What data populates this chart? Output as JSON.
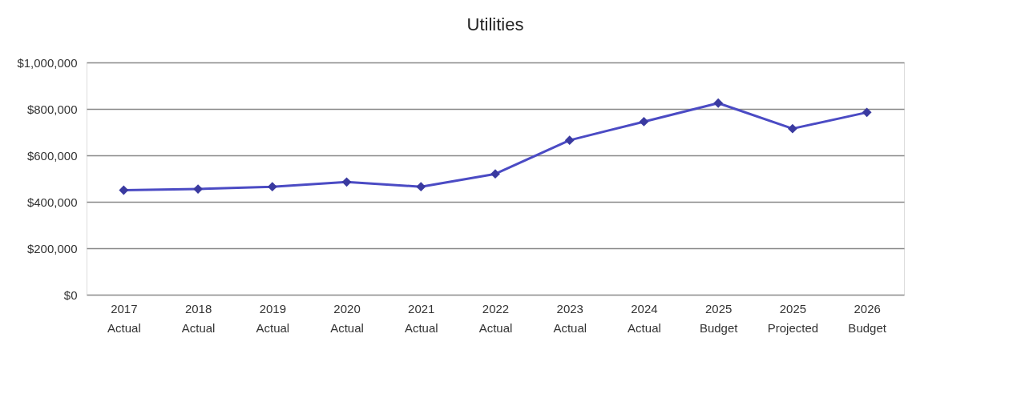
{
  "chart_data": {
    "type": "line",
    "title": "Utilities",
    "categories": [
      "2017 Actual",
      "2018 Actual",
      "2019 Actual",
      "2020 Actual",
      "2021 Actual",
      "2022 Actual",
      "2023 Actual",
      "2024 Actual",
      "2025 Budget",
      "2025 Projected",
      "2026 Budget"
    ],
    "series": [
      {
        "color": "#4b4bc4",
        "values": [
          450000,
          455000,
          465000,
          485000,
          465000,
          520000,
          665000,
          745000,
          825000,
          715000,
          785000
        ]
      }
    ],
    "ylim": [
      0,
      1000000
    ],
    "yticks": [
      {
        "value": 0,
        "label": "$0"
      },
      {
        "value": 200000,
        "label": "$200,000"
      },
      {
        "value": 400000,
        "label": "$400,000"
      },
      {
        "value": 600000,
        "label": "$600,000"
      },
      {
        "value": 800000,
        "label": "$800,000"
      },
      {
        "value": 1000000,
        "label": "$1,000,000"
      }
    ],
    "grid": "y",
    "marker": "diamond",
    "line_style": "solid"
  }
}
